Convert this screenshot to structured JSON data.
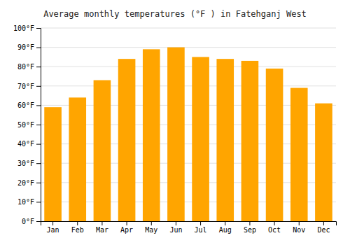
{
  "chart_data": {
    "type": "bar",
    "title": "Average monthly temperatures (°F ) in Fatehganj West",
    "categories": [
      "Jan",
      "Feb",
      "Mar",
      "Apr",
      "May",
      "Jun",
      "Jul",
      "Aug",
      "Sep",
      "Oct",
      "Nov",
      "Dec"
    ],
    "values": [
      59,
      64,
      73,
      84,
      89,
      90,
      85,
      84,
      83,
      79,
      69,
      61
    ],
    "color": "#FFA500",
    "ylim": [
      0,
      100
    ],
    "yticks": [
      {
        "value": 0,
        "label": "0°F"
      },
      {
        "value": 10,
        "label": "10°F"
      },
      {
        "value": 20,
        "label": "20°F"
      },
      {
        "value": 30,
        "label": "30°F"
      },
      {
        "value": 40,
        "label": "40°F"
      },
      {
        "value": 50,
        "label": "50°F"
      },
      {
        "value": 60,
        "label": "60°F"
      },
      {
        "value": 70,
        "label": "70°F"
      },
      {
        "value": 80,
        "label": "80°F"
      },
      {
        "value": 90,
        "label": "90°F"
      },
      {
        "value": 100,
        "label": "100°F"
      }
    ],
    "grid": true
  }
}
